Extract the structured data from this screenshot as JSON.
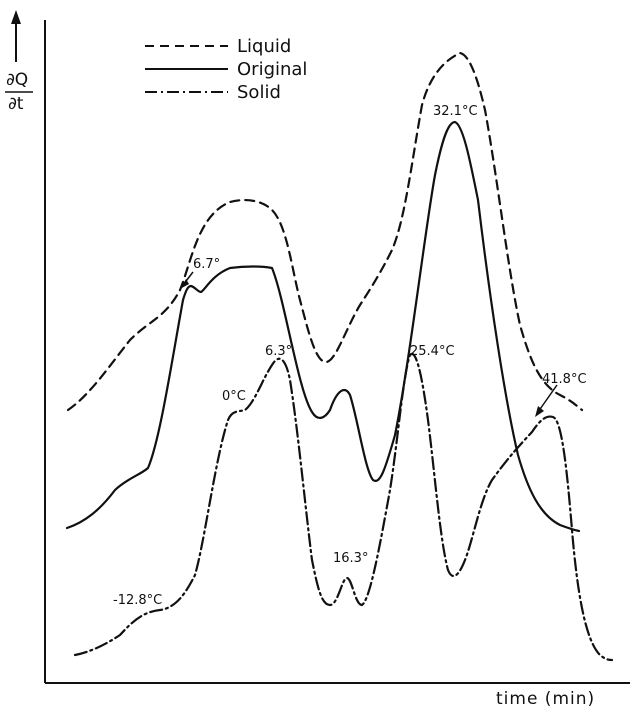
{
  "chart_data": {
    "type": "line",
    "title": "",
    "ylabel_top": "∂Q",
    "ylabel_bottom": "∂t",
    "xlabel": "time (min)",
    "grid": false,
    "legend_position": "top-left",
    "series": [
      {
        "name": "Liquid",
        "style": "dashed"
      },
      {
        "name": "Original",
        "style": "solid"
      },
      {
        "name": "Solid",
        "style": "dash-dot"
      }
    ],
    "annotations": [
      "6.7°",
      "32.1°C",
      "6.3°",
      "0°C",
      "25.4°C",
      "41.8°C",
      "16.3°",
      "-12.8°C"
    ]
  }
}
